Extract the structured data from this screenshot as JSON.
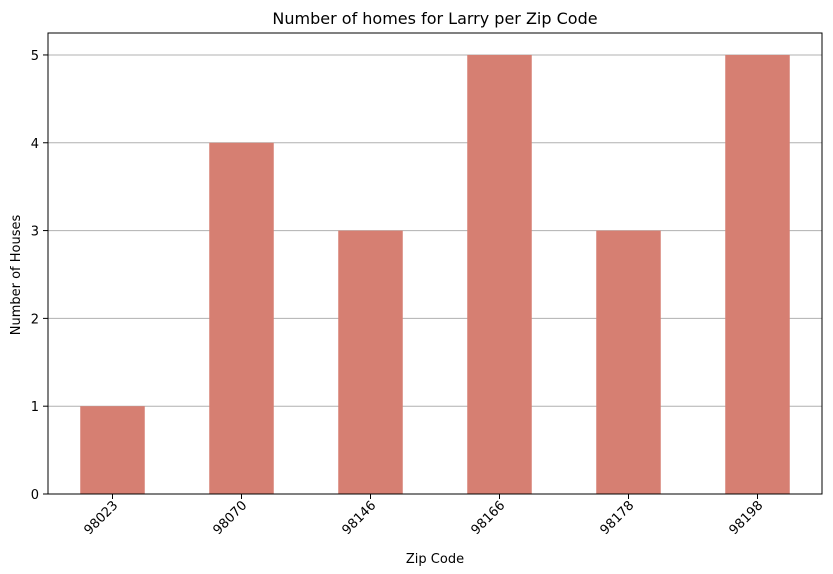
{
  "chart_data": {
    "type": "bar",
    "title": "Number of homes for Larry per Zip Code",
    "xlabel": "Zip Code",
    "ylabel": "Number of Houses",
    "categories": [
      "98023",
      "98070",
      "98146",
      "98166",
      "98178",
      "98198"
    ],
    "values": [
      1,
      4,
      3,
      5,
      3,
      5
    ],
    "ylim": [
      0,
      5.25
    ],
    "yticks": [
      "0",
      "1",
      "2",
      "3",
      "4",
      "5"
    ],
    "grid": "horizontal",
    "bar_color": "#d67f72",
    "legend": "none"
  }
}
